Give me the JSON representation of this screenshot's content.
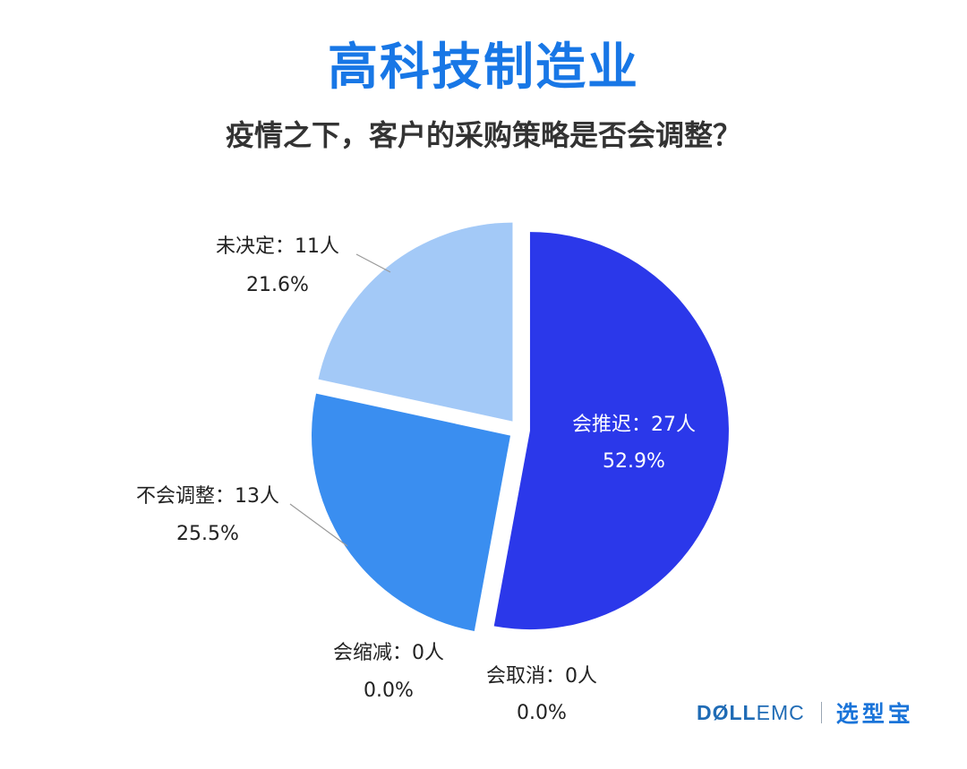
{
  "header": {
    "title": "高科技制造业",
    "subtitle": "疫情之下，客户的采购策略是否会调整？"
  },
  "chart_data": {
    "type": "pie",
    "title": "高科技制造业",
    "subtitle": "疫情之下，客户的采购策略是否会调整？",
    "slices": [
      {
        "label": "会推迟：27人",
        "category": "会推迟",
        "count": 27,
        "percent": "52.9%",
        "value": 52.9,
        "color": "#2b38ea"
      },
      {
        "label": "会取消：0人",
        "category": "会取消",
        "count": 0,
        "percent": "0.0%",
        "value": 0.0,
        "color": "#2b38ea"
      },
      {
        "label": "会缩减：0人",
        "category": "会缩减",
        "count": 0,
        "percent": "0.0%",
        "value": 0.0,
        "color": "#3a88ee"
      },
      {
        "label": "不会调整：13人",
        "category": "不会调整",
        "count": 13,
        "percent": "25.5%",
        "value": 25.5,
        "color": "#3a8ef0"
      },
      {
        "label": "未决定：11人",
        "category": "未决定",
        "count": 11,
        "percent": "21.6%",
        "value": 21.6,
        "color": "#a3c9f7"
      }
    ]
  },
  "brand": {
    "dell": "DØLL",
    "emc": "EMC",
    "partner": "选型宝"
  }
}
